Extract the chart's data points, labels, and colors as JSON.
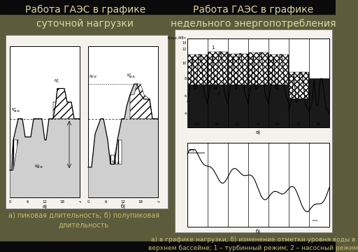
{
  "bg_color": "#5c5c3d",
  "top_bar_color": "#000000",
  "bottom_bar_color": "#000000",
  "text_color": "#ddd8a0",
  "caption_color": "#c8b870",
  "left_title": "Работа ГАЭС в графике\nсуточной нагрузки",
  "right_title": "Работа ГАЭС в графике\nнедельного энергопотребления",
  "left_caption": "а) пиковая длительность; б) полупиковая\nдлительность",
  "right_caption": "а) в графике нагрузки; б) изменение отметки уровня воды в\nверхнем бассейне; 1 – турбинный режим; 2 – насосный режим",
  "title_fontsize": 10,
  "caption_fontsize": 7,
  "img_bg_color": "#f5f2ed"
}
